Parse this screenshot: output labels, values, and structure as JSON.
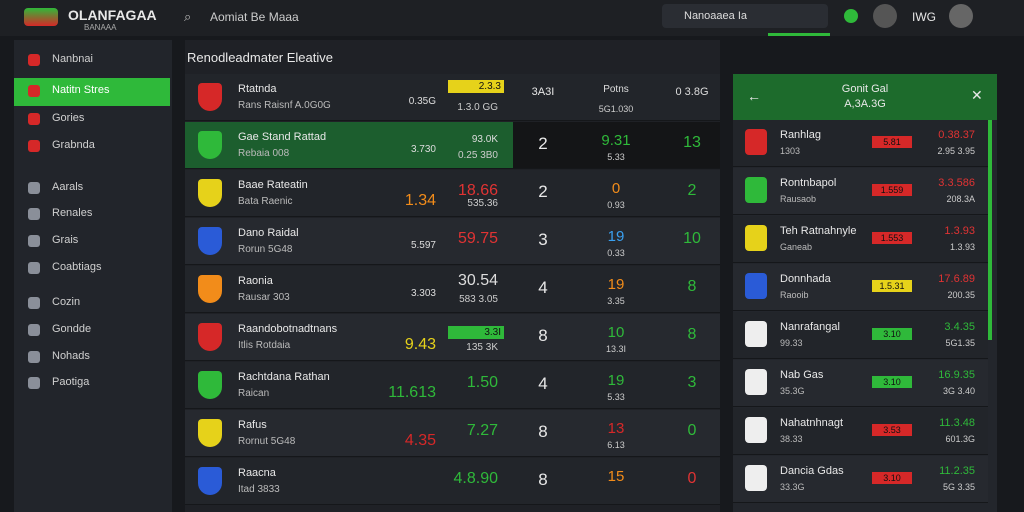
{
  "header": {
    "brand": "OLANFAGAA",
    "brand_sub": "BANAAA",
    "search": "Aomiat Be Maaa",
    "search_box": "Nanoaaea Ia",
    "user": "IWG"
  },
  "sidebar": {
    "items": [
      "Nanbnai",
      "Natitn Stres",
      "Gories",
      "Grabnda",
      "Aarals",
      "Renales",
      "Grais",
      "Coabtiags",
      "Cozin",
      "Gondde",
      "Nohads",
      "Paotiga"
    ]
  },
  "main": {
    "title": "Renodleadmater Eleative",
    "rows": [
      {
        "name": "Rtatnda",
        "detail": "Rans Raisnf A.0G0G",
        "o1": "0.35G",
        "o2": "2.3.3",
        "o3": "1.3.0 GG",
        "score": "3A3I",
        "mid": "Potns",
        "midsub": "5G1.030",
        "end": "0 3.8G"
      },
      {
        "name": "Gae Stand Rattad",
        "detail": "Rebaia 008",
        "o1": "3.730",
        "o2": "93.0K",
        "o3": "0.25 3B0",
        "score": "2",
        "mid": "9.31",
        "midsub": "5.33",
        "end": "13"
      },
      {
        "name": "Baae Rateatin",
        "detail": "Bata Raenic",
        "o1": "1.34",
        "o2": "18.66",
        "o3": "535.36",
        "score": "2",
        "mid": "0",
        "midsub": "0.93",
        "end": "2"
      },
      {
        "name": "Dano Raidal",
        "detail": "Rorun 5G48",
        "o1": "5.597",
        "o2": "59.75",
        "o3": "",
        "score": "3",
        "mid": "19",
        "midsub": "0.33",
        "end": "10"
      },
      {
        "name": "Raonia",
        "detail": "Rausar 303",
        "o1": "3.303",
        "o2": "30.54",
        "o3": "583 3.05",
        "score": "4",
        "mid": "19",
        "midsub": "3.35",
        "end": "8"
      },
      {
        "name": "Raandobotnadtnans",
        "detail": "Itlis Rotdaia",
        "o1": "9.43",
        "o2": "3.3I",
        "o3": "135 3K",
        "score": "8",
        "mid": "10",
        "midsub": "13.3I",
        "end": "8"
      },
      {
        "name": "Rachtdana Rathan",
        "detail": "Raican",
        "o1": "11.613",
        "o2": "1.50",
        "o3": "",
        "score": "4",
        "mid": "19",
        "midsub": "5.33",
        "end": "3"
      },
      {
        "name": "Rafus",
        "detail": "Rornut 5G48",
        "o1": "4.35",
        "o2": "7.27",
        "o3": "",
        "score": "8",
        "mid": "13",
        "midsub": "6.13",
        "end": "0"
      },
      {
        "name": "Raacna",
        "detail": "Itad 3833",
        "o1": "",
        "o2": "4.8.90",
        "o3": "",
        "score": "8",
        "mid": "15",
        "midsub": "",
        "end": "0"
      }
    ]
  },
  "panel": {
    "title": "Gonit Gal",
    "subtitle": "A,3A.3G",
    "rows": [
      {
        "name": "Ranhlag",
        "detail": "1303",
        "badge": "5.81",
        "badge_color": "#d62828",
        "v1": "0.38.37",
        "v2": "2.95 3.95"
      },
      {
        "name": "Rontnbapol",
        "detail": "Rausaob",
        "badge": "1.559",
        "badge_color": "#d62828",
        "v1": "3.3.586",
        "v2": "208.3A"
      },
      {
        "name": "Teh Ratnahnyle",
        "detail": "Ganeab",
        "badge": "1.553",
        "badge_color": "#d62828",
        "v1": "1.3.93",
        "v2": "1.3.93"
      },
      {
        "name": "Donnhada",
        "detail": "Raooib",
        "badge": "1.5.31",
        "badge_color": "#e6d21a",
        "v1": "17.6.89",
        "v2": "200.35"
      },
      {
        "name": "Nanrafangal",
        "detail": "99.33",
        "badge": "3.10",
        "badge_color": "#2fb93a",
        "v1": "3.4.35",
        "v2": "5G1.35"
      },
      {
        "name": "Nab Gas",
        "detail": "35.3G",
        "badge": "3.10",
        "badge_color": "#2fb93a",
        "v1": "16.9.35",
        "v2": "3G 3.40"
      },
      {
        "name": "Nahatnhnagt",
        "detail": "38.33",
        "badge": "3.53",
        "badge_color": "#d62828",
        "v1": "11.3.48",
        "v2": "601.3G"
      },
      {
        "name": "Dancia Gdas",
        "detail": "33.3G",
        "badge": "3.10",
        "badge_color": "#d62828",
        "v1": "11.2.35",
        "v2": "5G 3.35"
      }
    ]
  }
}
